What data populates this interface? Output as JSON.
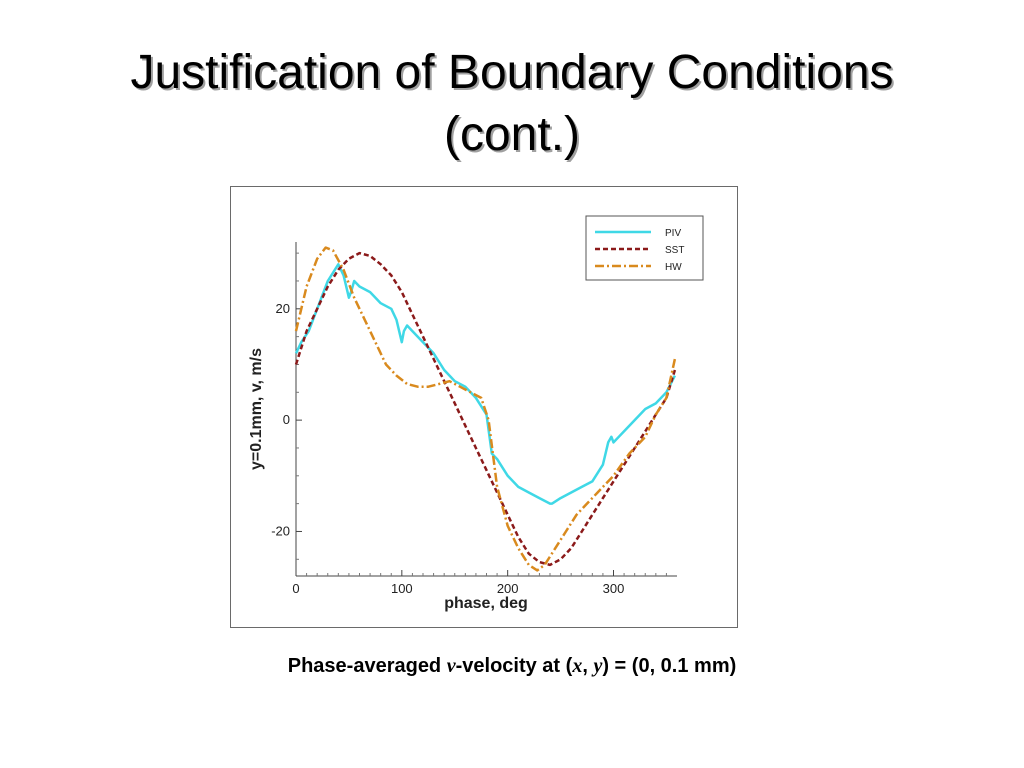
{
  "slide": {
    "title_line1": "Justification of Boundary Conditions",
    "title_line2": "(cont.)"
  },
  "caption": {
    "prefix": "Phase-averaged ",
    "var_v": "v",
    "mid": "-velocity at (",
    "var_x": "x",
    "comma": ", ",
    "var_y": "y",
    "suffix": ") = (0, 0.1 mm)"
  },
  "chart_data": {
    "type": "line",
    "title": "",
    "xlabel": "phase, deg",
    "ylabel": "y=0.1mm, v, m/s",
    "xlim": [
      0,
      360
    ],
    "ylim": [
      -28,
      32
    ],
    "xticks": [
      0,
      100,
      200,
      300
    ],
    "yticks": [
      -20,
      0,
      20
    ],
    "xtick_labels": [
      "0",
      "100",
      "200",
      "300"
    ],
    "ytick_labels": [
      "-20",
      "0",
      "20"
    ],
    "grid": false,
    "legend_position": "top-right",
    "series": [
      {
        "name": "PIV",
        "color": "#3fd8e6",
        "dash": "solid",
        "x": [
          0,
          5,
          12,
          20,
          30,
          40,
          45,
          50,
          52,
          55,
          60,
          70,
          80,
          90,
          95,
          100,
          102,
          105,
          110,
          120,
          130,
          140,
          150,
          160,
          170,
          180,
          185,
          190,
          200,
          210,
          220,
          230,
          240,
          242,
          250,
          260,
          270,
          280,
          290,
          295,
          298,
          300,
          305,
          310,
          320,
          330,
          340,
          350,
          358
        ],
        "values": [
          12,
          14,
          16,
          20,
          25,
          28,
          26,
          22,
          23,
          25,
          24,
          23,
          21,
          20,
          18,
          14,
          16,
          17,
          16,
          14,
          12,
          9,
          7,
          6,
          4,
          1,
          -6,
          -7,
          -10,
          -12,
          -13,
          -14,
          -15,
          -15,
          -14,
          -13,
          -12,
          -11,
          -8,
          -4,
          -3,
          -4,
          -3,
          -2,
          0,
          2,
          3,
          5,
          8
        ]
      },
      {
        "name": "SST",
        "color": "#8b1a1a",
        "dash": "dashed",
        "x": [
          0,
          10,
          20,
          30,
          40,
          50,
          60,
          70,
          80,
          90,
          100,
          110,
          120,
          130,
          140,
          150,
          160,
          170,
          180,
          190,
          200,
          210,
          220,
          230,
          240,
          250,
          260,
          270,
          280,
          290,
          300,
          310,
          320,
          330,
          340,
          350,
          358
        ],
        "values": [
          10,
          16,
          20,
          24,
          27,
          29,
          30,
          29.5,
          28,
          26,
          23,
          19,
          15,
          11,
          7,
          3,
          -1,
          -5,
          -9,
          -13,
          -17,
          -21,
          -24,
          -25.5,
          -26,
          -25,
          -23,
          -20,
          -17,
          -14,
          -11,
          -8,
          -5,
          -2,
          1,
          4,
          9
        ]
      },
      {
        "name": "HW",
        "color": "#d98a1e",
        "dash": "dashdot",
        "x": [
          0,
          10,
          20,
          28,
          35,
          45,
          55,
          65,
          75,
          85,
          95,
          105,
          115,
          125,
          135,
          145,
          155,
          165,
          175,
          182,
          190,
          200,
          210,
          220,
          228,
          235,
          245,
          255,
          265,
          275,
          285,
          300,
          315,
          330,
          340,
          350,
          358
        ],
        "values": [
          16,
          24,
          29,
          31,
          30.5,
          27,
          22,
          18,
          14,
          10,
          8,
          6.5,
          6,
          6,
          6.5,
          7,
          6,
          5,
          4,
          0,
          -12,
          -19,
          -23,
          -26,
          -27,
          -26,
          -23,
          -20,
          -17,
          -15,
          -13,
          -10,
          -6,
          -3,
          1,
          4,
          11
        ]
      }
    ]
  }
}
